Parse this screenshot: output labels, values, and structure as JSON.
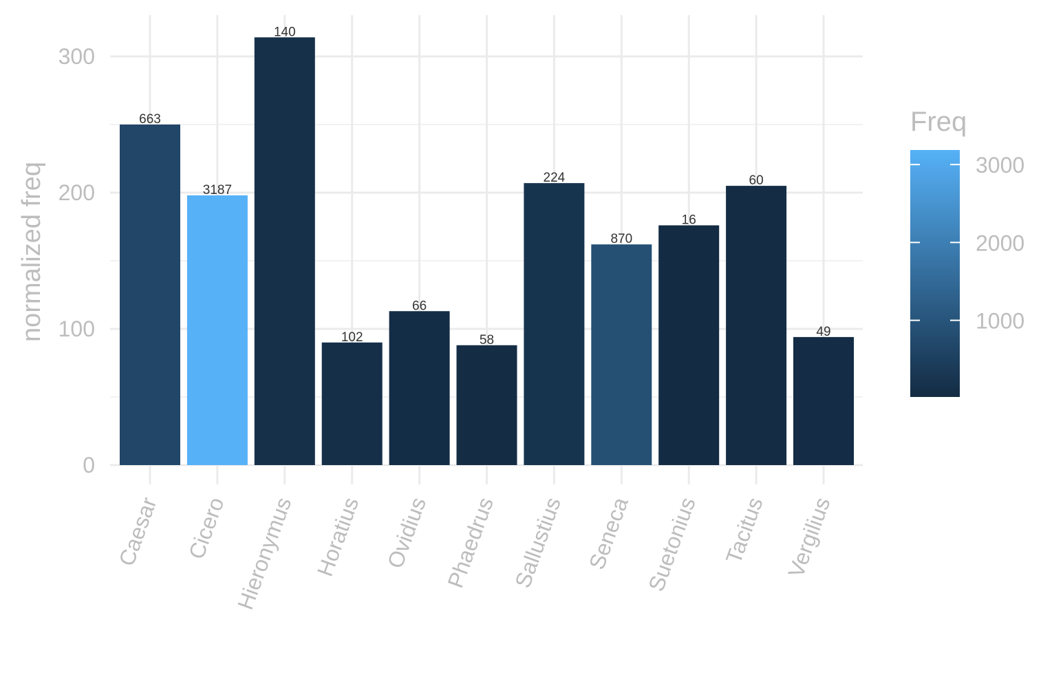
{
  "chart_data": {
    "type": "bar",
    "categories": [
      "Caesar",
      "Cicero",
      "Hieronymus",
      "Horatius",
      "Ovidius",
      "Phaedrus",
      "Sallustius",
      "Seneca",
      "Suetonius",
      "Tacitus",
      "Vergilius"
    ],
    "values": [
      250,
      198,
      314,
      90,
      113,
      88,
      207,
      162,
      176,
      205,
      94
    ],
    "freq": [
      663,
      3187,
      140,
      102,
      66,
      58,
      224,
      870,
      16,
      60,
      49
    ],
    "ylabel": "normalized freq",
    "xlabel": "",
    "ylim": [
      0,
      330
    ],
    "yticks": [
      0,
      100,
      200,
      300
    ],
    "legend": {
      "title": "Freq",
      "ticks": [
        1000,
        2000,
        3000
      ],
      "range": [
        16,
        3187
      ],
      "low_color": "#132b43",
      "high_color": "#56b1f7",
      "placement": "right"
    },
    "grid": true
  }
}
